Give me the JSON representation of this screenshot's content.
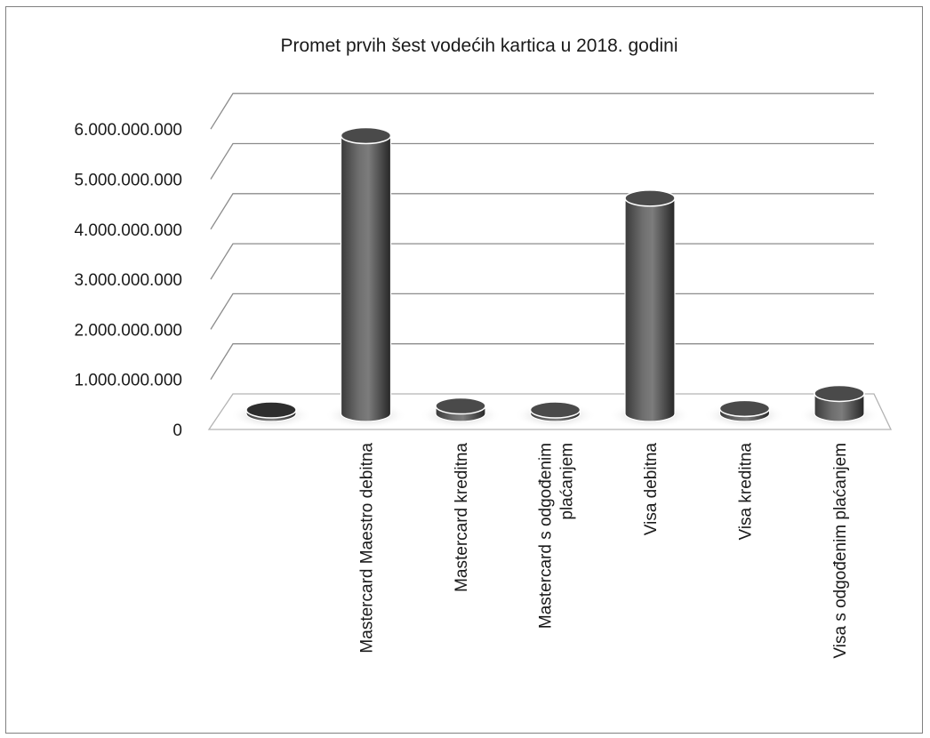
{
  "chart_data": {
    "type": "bar",
    "style": "3d-cylinder",
    "title": "Promet prvih šest vodećih kartica u 2018. godini",
    "xlabel": "",
    "ylabel": "",
    "ylim": [
      0,
      6000000000
    ],
    "yticks": [
      0,
      1000000000,
      2000000000,
      3000000000,
      4000000000,
      5000000000,
      6000000000
    ],
    "ytick_labels": [
      "0",
      "1.000.000.000",
      "2.000.000.000",
      "3.000.000.000",
      "4.000.000.000",
      "5.000.000.000",
      "6.000.000.000"
    ],
    "categories": [
      "",
      "Mastercard Maestro debitna",
      "Mastercard kreditna",
      "Mastercard s odgođenim plaćanjem",
      "Visa debitna",
      "Visa kreditna",
      "Visa s odgođenim plaćanjem"
    ],
    "category_label_lines": [
      [],
      [
        "Mastercard Maestro debitna"
      ],
      [
        "Mastercard kreditna"
      ],
      [
        "Mastercard s odgođenim",
        "plaćanjem"
      ],
      [
        "Visa debitna"
      ],
      [
        "Visa kreditna"
      ],
      [
        "Visa s odgođenim plaćanjem"
      ]
    ],
    "values": [
      0,
      5550000000,
      150000000,
      50000000,
      4300000000,
      100000000,
      400000000
    ],
    "grid": true,
    "legend": "none",
    "colors": {
      "bar_dark": "#2e2e2e",
      "bar_mid": "#6b6b6b",
      "bar_light": "#8c8c8c",
      "grid": "#8c8c8c",
      "floor_edge": "#b3b3b3"
    }
  }
}
